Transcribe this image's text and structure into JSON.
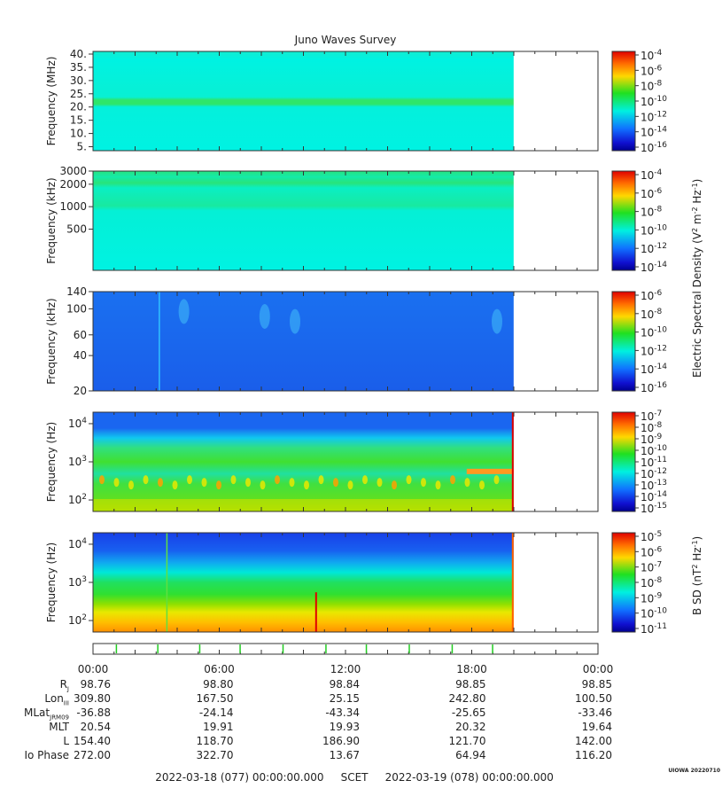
{
  "title": "Juno Waves Survey",
  "chart_data": [
    {
      "type": "heatmap",
      "panel": "hfr-high",
      "ylabel": "Frequency (MHz)",
      "yscale": "linear",
      "ylim": [
        3.5,
        41
      ],
      "yticks": [
        {
          "v": 5,
          "label": "5."
        },
        {
          "v": 10,
          "label": "10."
        },
        {
          "v": 15,
          "label": "15."
        },
        {
          "v": 20,
          "label": "20."
        },
        {
          "v": 25,
          "label": "25."
        },
        {
          "v": 30,
          "label": "30."
        },
        {
          "v": 35,
          "label": "35."
        },
        {
          "v": 40,
          "label": "40."
        }
      ],
      "data_end_fraction": 0.833,
      "colorbar": {
        "labels": [
          "10-4",
          "10-6",
          "10-8",
          "10-10",
          "10-12",
          "10-14",
          "10-16"
        ]
      }
    },
    {
      "type": "heatmap",
      "panel": "hfr-low",
      "ylabel": "Frequency (kHz)",
      "yscale": "log",
      "ylim": [
        140,
        3000
      ],
      "yticks": [
        {
          "v": 500,
          "label": "500"
        },
        {
          "v": 1000,
          "label": "1000"
        },
        {
          "v": 2000,
          "label": "2000"
        },
        {
          "v": 3000,
          "label": "3000"
        }
      ],
      "data_end_fraction": 0.833,
      "colorbar": {
        "labels": [
          "10-4",
          "10-6",
          "10-8",
          "10-10",
          "10-12",
          "10-14"
        ]
      }
    },
    {
      "type": "heatmap",
      "panel": "lfr-high",
      "ylabel": "Frequency (kHz)",
      "yscale": "log",
      "ylim": [
        20,
        140
      ],
      "yticks": [
        {
          "v": 20,
          "label": "20"
        },
        {
          "v": 40,
          "label": "40"
        },
        {
          "v": 60,
          "label": "60"
        },
        {
          "v": 100,
          "label": "100"
        },
        {
          "v": 140,
          "label": "140"
        }
      ],
      "data_end_fraction": 0.833,
      "colorbar": {
        "labels": [
          "10-6",
          "10-8",
          "10-10",
          "10-12",
          "10-14",
          "10-16"
        ]
      }
    },
    {
      "type": "heatmap",
      "panel": "lfr-low",
      "ylabel": "Frequency (Hz)",
      "yscale": "log",
      "ylim": [
        50,
        20000
      ],
      "yticks": [
        {
          "v": 100,
          "label": "10^2"
        },
        {
          "v": 1000,
          "label": "10^3"
        },
        {
          "v": 10000,
          "label": "10^4"
        }
      ],
      "data_end_fraction": 0.833,
      "colorbar": {
        "labels": [
          "10-7",
          "10-8",
          "10-9",
          "10-10",
          "10-11",
          "10-12",
          "10-13",
          "10-14",
          "10-15"
        ]
      }
    },
    {
      "type": "heatmap",
      "panel": "magnetic",
      "ylabel": "Frequency (Hz)",
      "yscale": "log",
      "ylim": [
        50,
        20000
      ],
      "yticks": [
        {
          "v": 100,
          "label": "10^2"
        },
        {
          "v": 1000,
          "label": "10^3"
        },
        {
          "v": 10000,
          "label": "10^4"
        }
      ],
      "data_end_fraction": 0.833,
      "colorbar": {
        "labels": [
          "10-5",
          "10-6",
          "10-7",
          "10-8",
          "10-9",
          "10-10",
          "10-11"
        ]
      }
    }
  ],
  "colorbar_titles": {
    "electric": "Electric Spectral Density (V^2 m^-2 Hz^-1)",
    "magnetic": "B SD (nT^2 Hz^-1)"
  },
  "x_axis": {
    "tick_labels": [
      "00:00",
      "06:00",
      "12:00",
      "18:00",
      "00:00"
    ]
  },
  "ephemeris": [
    {
      "label": "R_J",
      "values": [
        "98.76",
        "98.80",
        "98.84",
        "98.85",
        "98.85"
      ]
    },
    {
      "label": "Lon_III",
      "values": [
        "309.80",
        "167.50",
        "25.15",
        "242.80",
        "100.50"
      ]
    },
    {
      "label": "MLat_JRM09",
      "values": [
        "-36.88",
        "-24.14",
        "-43.34",
        "-25.65",
        "-33.46"
      ]
    },
    {
      "label": "MLT",
      "values": [
        "20.54",
        "19.91",
        "19.93",
        "20.32",
        "19.64"
      ]
    },
    {
      "label": "L",
      "values": [
        "154.40",
        "118.70",
        "186.90",
        "121.70",
        "142.00"
      ]
    },
    {
      "label": "Io Phase",
      "values": [
        "272.00",
        "322.70",
        "13.67",
        "64.94",
        "116.20"
      ]
    }
  ],
  "footer": {
    "start": "2022-03-18 (077) 00:00:00.000",
    "scet": "SCET",
    "end": "2022-03-19 (078) 00:00:00.000"
  },
  "credit": "UIOWA 20220710",
  "colors": {
    "bg_cyan": "#00f2e2",
    "bg_blue": "#1a66f0",
    "green": "#1fe61f",
    "yellow": "#f0f000",
    "orange": "#ff9a00",
    "red": "#e00000",
    "marker": "#22cc22"
  }
}
